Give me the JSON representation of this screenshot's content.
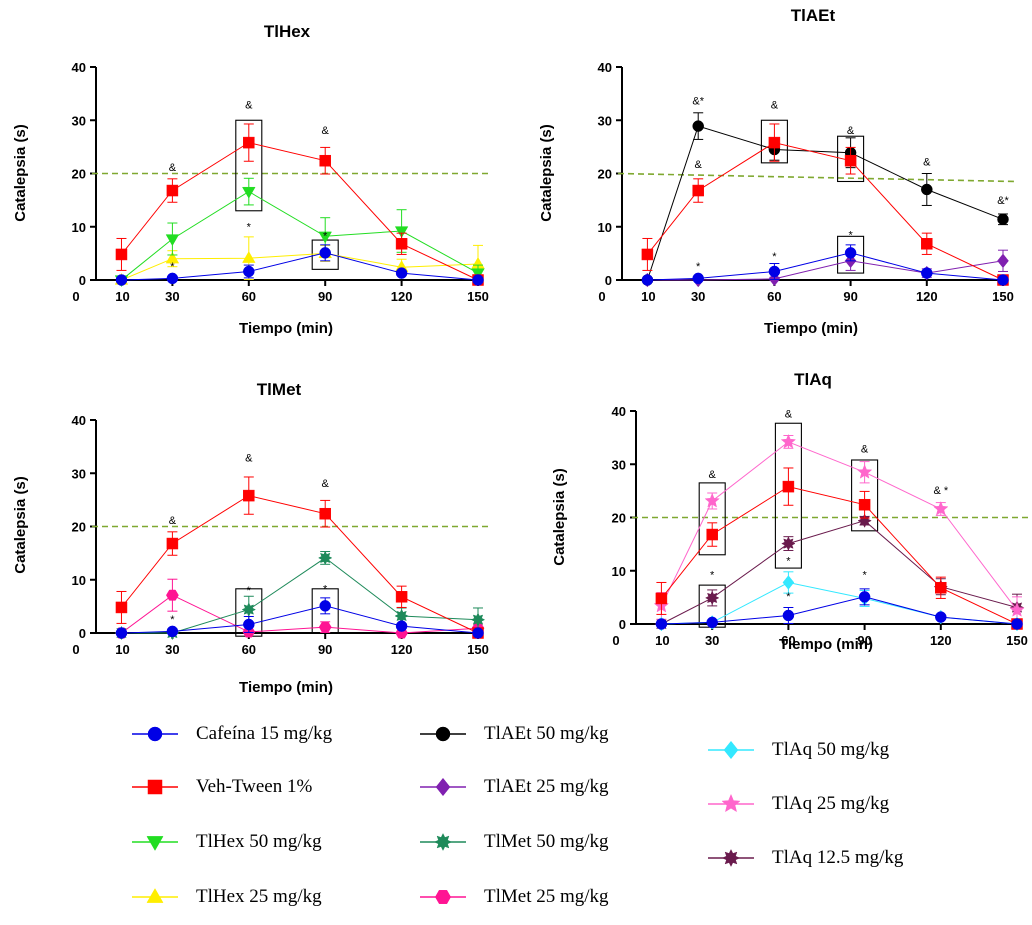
{
  "threshold": 20,
  "chart_data": [
    {
      "type": "line",
      "title": "TlHex",
      "xlabel": "Tiempo (min)",
      "ylabel": "Catalepsia (s)",
      "x": [
        10,
        30,
        60,
        90,
        120,
        150
      ],
      "xlim": [
        0,
        150
      ],
      "ylim": [
        0,
        40
      ],
      "xticks": [
        "0",
        "10",
        "30",
        "60",
        "90",
        "120",
        "150"
      ],
      "yticks": [
        "0",
        "10",
        "20",
        "30",
        "40"
      ],
      "reference_line": 20,
      "series": [
        {
          "name": "Cafeína 15 mg/kg",
          "values": [
            0,
            0.3,
            1.6,
            5.1,
            1.3,
            0
          ],
          "err": [
            0,
            0.3,
            1.2,
            1.5,
            0.4,
            0
          ]
        },
        {
          "name": "Veh-Tween 1%",
          "values": [
            4.8,
            16.8,
            25.8,
            22.4,
            6.8,
            0
          ],
          "err": [
            3,
            2.2,
            3.5,
            2.5,
            2,
            0
          ]
        },
        {
          "name": "TlHex 50 mg/kg",
          "values": [
            0,
            7.7,
            16.6,
            8.2,
            9.2,
            1.3
          ],
          "err": [
            0,
            3,
            2.5,
            3.5,
            4,
            1.5
          ]
        },
        {
          "name": "TlHex 25 mg/kg",
          "values": [
            0,
            4,
            4.1,
            5,
            2.4,
            3
          ],
          "err": [
            0,
            1.5,
            4,
            1.5,
            1.5,
            3.5
          ]
        }
      ],
      "annotations": [
        {
          "x": 30,
          "y": 20.5,
          "text": "&"
        },
        {
          "x": 30,
          "y": 1.9,
          "text": "*"
        },
        {
          "x": 60,
          "y": 32.2,
          "text": "&"
        },
        {
          "x": 60,
          "y": 9.3,
          "text": "*"
        },
        {
          "x": 90,
          "y": 27.4,
          "text": "&"
        },
        {
          "x": 90,
          "y": 7.6,
          "text": "*"
        }
      ],
      "boxes": [
        {
          "x": 60,
          "y0": 13,
          "y1": 30
        },
        {
          "x": 90,
          "y0": 2,
          "y1": 7.5
        }
      ]
    },
    {
      "type": "line",
      "title": "TlAEt",
      "xlabel": "Tiempo (min)",
      "ylabel": "Catalepsia (s)",
      "x": [
        10,
        30,
        60,
        90,
        120,
        150
      ],
      "xlim": [
        0,
        150
      ],
      "ylim": [
        0,
        40
      ],
      "xticks": [
        "0",
        "10",
        "30",
        "60",
        "90",
        "120",
        "150"
      ],
      "yticks": [
        "0",
        "10",
        "20",
        "30",
        "40"
      ],
      "reference_line": [
        20,
        18.5
      ],
      "series": [
        {
          "name": "Cafeína 15 mg/kg",
          "values": [
            0,
            0.3,
            1.6,
            5.1,
            1.3,
            0
          ],
          "err": [
            0,
            0.3,
            1.5,
            1.5,
            0.4,
            0
          ]
        },
        {
          "name": "Veh-Tween 1%",
          "values": [
            4.8,
            16.8,
            25.8,
            22.4,
            6.8,
            0
          ],
          "err": [
            3,
            2.2,
            3.5,
            2.5,
            2,
            0
          ]
        },
        {
          "name": "TlAEt 50 mg/kg",
          "values": [
            0,
            28.9,
            24.5,
            23.9,
            17,
            11.4
          ],
          "err": [
            0,
            2.5,
            2,
            2.8,
            3,
            1
          ]
        },
        {
          "name": "TlAEt 25 mg/kg",
          "values": [
            0,
            0,
            0.2,
            3.6,
            1.3,
            3.6
          ],
          "err": [
            0,
            0,
            0.3,
            1.8,
            0.8,
            2
          ]
        }
      ],
      "annotations": [
        {
          "x": 30,
          "y": 33,
          "text": "&*"
        },
        {
          "x": 30,
          "y": 21,
          "text": "&"
        },
        {
          "x": 30,
          "y": 1.9,
          "text": "*"
        },
        {
          "x": 60,
          "y": 32.2,
          "text": "&"
        },
        {
          "x": 60,
          "y": 3.8,
          "text": "*"
        },
        {
          "x": 90,
          "y": 27.4,
          "text": "&"
        },
        {
          "x": 90,
          "y": 7.8,
          "text": "*"
        },
        {
          "x": 120,
          "y": 21.5,
          "text": "&"
        },
        {
          "x": 150,
          "y": 14.3,
          "text": "&*"
        }
      ],
      "boxes": [
        {
          "x": 60,
          "y0": 22,
          "y1": 30
        },
        {
          "x": 90,
          "y0": 18.5,
          "y1": 27
        },
        {
          "x": 90,
          "y0": 1.3,
          "y1": 8.2
        }
      ]
    },
    {
      "type": "line",
      "title": "TlMet",
      "xlabel": "Tiempo (min)",
      "ylabel": "Catalepsia (s)",
      "x": [
        10,
        30,
        60,
        90,
        120,
        150
      ],
      "xlim": [
        0,
        150
      ],
      "ylim": [
        0,
        40
      ],
      "xticks": [
        "0",
        "10",
        "30",
        "60",
        "90",
        "120",
        "150"
      ],
      "yticks": [
        "0",
        "10",
        "20",
        "30",
        "40"
      ],
      "reference_line": 20,
      "series": [
        {
          "name": "Cafeína 15 mg/kg",
          "values": [
            0,
            0.3,
            1.6,
            5.1,
            1.3,
            0
          ],
          "err": [
            0,
            0.3,
            1.5,
            1.5,
            0.4,
            0
          ]
        },
        {
          "name": "Veh-Tween 1%",
          "values": [
            4.8,
            16.8,
            25.8,
            22.4,
            6.8,
            0
          ],
          "err": [
            3,
            2.2,
            3.5,
            2.5,
            2,
            0
          ]
        },
        {
          "name": "TlMet 50 mg/kg",
          "values": [
            0,
            0,
            4.4,
            14.1,
            3.2,
            2.5
          ],
          "err": [
            0,
            0,
            2.5,
            1.2,
            1.5,
            2.2
          ]
        },
        {
          "name": "TlMet 25 mg/kg",
          "values": [
            0,
            7.1,
            0.2,
            1.1,
            0,
            0.9
          ],
          "err": [
            0,
            3,
            0.3,
            1,
            0,
            0.8
          ]
        }
      ],
      "annotations": [
        {
          "x": 30,
          "y": 20.5,
          "text": "&"
        },
        {
          "x": 30,
          "y": 1.9,
          "text": "*"
        },
        {
          "x": 60,
          "y": 32.2,
          "text": "&"
        },
        {
          "x": 60,
          "y": 7.3,
          "text": "*"
        },
        {
          "x": 90,
          "y": 27.4,
          "text": "&"
        },
        {
          "x": 90,
          "y": 7.6,
          "text": "*"
        }
      ],
      "boxes": [
        {
          "x": 60,
          "y0": -0.6,
          "y1": 8.3
        },
        {
          "x": 90,
          "y0": 0,
          "y1": 8.3
        }
      ]
    },
    {
      "type": "line",
      "title": "TlAq",
      "xlabel": "Tiempo (min)",
      "ylabel": "Catalepsia (s)",
      "x": [
        10,
        30,
        60,
        90,
        120,
        150
      ],
      "xlim": [
        0,
        150
      ],
      "ylim": [
        0,
        40
      ],
      "xticks": [
        "0",
        "10",
        "30",
        "60",
        "90",
        "120",
        "150"
      ],
      "yticks": [
        "0",
        "10",
        "20",
        "30",
        "40"
      ],
      "reference_line": 20,
      "series": [
        {
          "name": "Cafeína 15 mg/kg",
          "values": [
            0,
            0.3,
            1.6,
            5.1,
            1.3,
            0
          ],
          "err": [
            0,
            0.3,
            1.5,
            1.5,
            0.4,
            0
          ]
        },
        {
          "name": "Veh-Tween 1%",
          "values": [
            4.8,
            16.8,
            25.8,
            22.4,
            6.8,
            0
          ],
          "err": [
            3,
            2.2,
            3.5,
            2.5,
            2,
            0
          ]
        },
        {
          "name": "TlAq 50 mg/kg",
          "values": [
            0,
            0.3,
            7.8,
            4.8,
            1.3,
            0
          ],
          "err": [
            0,
            0.3,
            2,
            1.5,
            0.4,
            0
          ]
        },
        {
          "name": "TlAq 25 mg/kg",
          "values": [
            3.4,
            23.1,
            34.2,
            28.5,
            21.6,
            2.6
          ],
          "err": [
            2.5,
            1.5,
            1.2,
            2,
            1.2,
            2.5
          ]
        },
        {
          "name": "TlAq 12.5 mg/kg",
          "values": [
            0,
            4.9,
            15.1,
            19.4,
            7,
            3.1
          ],
          "err": [
            0,
            1.5,
            1.3,
            0.8,
            1.5,
            2.5
          ]
        }
      ],
      "annotations": [
        {
          "x": 30,
          "y": 27.4,
          "text": "&"
        },
        {
          "x": 30,
          "y": 8.5,
          "text": "*"
        },
        {
          "x": 60,
          "y": 38.8,
          "text": "&"
        },
        {
          "x": 60,
          "y": 11.2,
          "text": "*"
        },
        {
          "x": 60,
          "y": 4.5,
          "text": "*"
        },
        {
          "x": 90,
          "y": 32.2,
          "text": "&"
        },
        {
          "x": 90,
          "y": 8.5,
          "text": "*"
        },
        {
          "x": 120,
          "y": 24.4,
          "text": "& *"
        }
      ],
      "boxes": [
        {
          "x": 30,
          "y0": 13,
          "y1": 26.5
        },
        {
          "x": 60,
          "y0": 10.5,
          "y1": 37.7
        },
        {
          "x": 90,
          "y0": 17.5,
          "y1": 30.8
        },
        {
          "x": 30,
          "y0": -0.6,
          "y1": 7.3
        }
      ]
    }
  ],
  "legend": [
    {
      "label": "Cafeína 15 mg/kg",
      "color": "#0000e6",
      "marker": "circle"
    },
    {
      "label": "Veh-Tween 1%",
      "color": "#ff0000",
      "marker": "square"
    },
    {
      "label": "TlHex 50 mg/kg",
      "color": "#22dd22",
      "marker": "triangle-down"
    },
    {
      "label": "TlHex 25 mg/kg",
      "color": "#ffee00",
      "marker": "triangle-up"
    },
    {
      "label": "TlAEt 50 mg/kg",
      "color": "#000000",
      "marker": "circle"
    },
    {
      "label": "TlAEt 25 mg/kg",
      "color": "#8020b0",
      "marker": "diamond"
    },
    {
      "label": "TlMet 50 mg/kg",
      "color": "#1e8a5a",
      "marker": "star-burst"
    },
    {
      "label": "TlMet 25 mg/kg",
      "color": "#ff1493",
      "marker": "hexagon"
    },
    {
      "label": "TlAq 50 mg/kg",
      "color": "#33e8ff",
      "marker": "diamond"
    },
    {
      "label": "TlAq 25 mg/kg",
      "color": "#ff66cc",
      "marker": "star"
    },
    {
      "label": "TlAq 12.5 mg/kg",
      "color": "#6a1b4d",
      "marker": "star-burst"
    }
  ]
}
